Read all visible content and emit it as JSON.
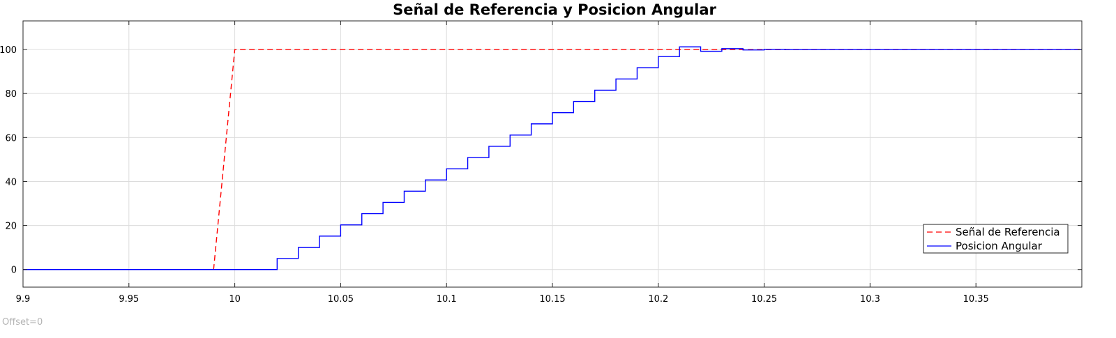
{
  "footer": {
    "offset_label": "Offset=0"
  },
  "chart_data": {
    "type": "line",
    "title": "Señal de Referencia y Posicion Angular",
    "xlabel": "",
    "ylabel": "",
    "xlim": [
      9.9,
      10.4
    ],
    "ylim": [
      -8,
      113
    ],
    "xticks": [
      9.9,
      9.95,
      10,
      10.05,
      10.1,
      10.15,
      10.2,
      10.25,
      10.3,
      10.35
    ],
    "xtick_labels": [
      "9.9",
      "9.95",
      "10",
      "10.05",
      "10.1",
      "10.15",
      "10.2",
      "10.25",
      "10.3",
      "10.35"
    ],
    "yticks": [
      0,
      20,
      40,
      60,
      80,
      100
    ],
    "ytick_labels": [
      "0",
      "20",
      "40",
      "60",
      "80",
      "100"
    ],
    "grid": true,
    "legend_position": "bottom-right",
    "colors": {
      "reference": "#ff0000",
      "position": "#0000ff",
      "grid": "#dcdcdc"
    },
    "series": [
      {
        "name": "Señal de Referencia",
        "style": "dashed",
        "x": [
          9.9,
          9.99,
          10.0,
          10.4
        ],
        "y": [
          0,
          0,
          100,
          100
        ]
      },
      {
        "name": "Posicion Angular",
        "style": "stairs",
        "x": [
          9.9,
          10.02,
          10.03,
          10.04,
          10.05,
          10.06,
          10.07,
          10.08,
          10.09,
          10.1,
          10.11,
          10.12,
          10.13,
          10.14,
          10.15,
          10.16,
          10.17,
          10.18,
          10.19,
          10.2,
          10.21,
          10.22,
          10.23,
          10.24,
          10.25,
          10.26,
          10.4
        ],
        "y": [
          0,
          5,
          10,
          15.2,
          20.3,
          25.4,
          30.5,
          35.6,
          40.7,
          45.8,
          50.9,
          56,
          61.1,
          66.2,
          71.3,
          76.4,
          81.5,
          86.6,
          91.7,
          96.8,
          101.2,
          99.2,
          100.4,
          99.8,
          100.1,
          100,
          100
        ]
      }
    ]
  }
}
